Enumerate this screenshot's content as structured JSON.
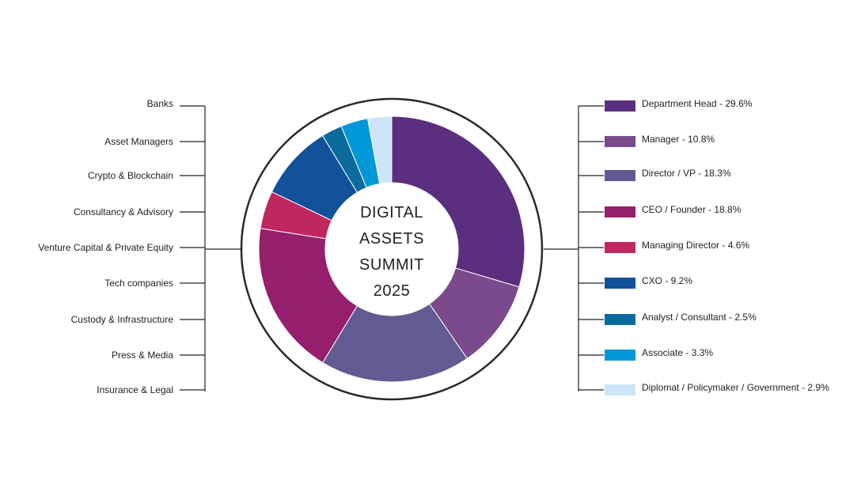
{
  "center": {
    "line1": "DIGITAL",
    "line2": "ASSETS",
    "line3": "SUMMIT",
    "year": "2025",
    "year_color": "#5b2d82"
  },
  "categories": [
    "Banks",
    "Asset Managers",
    "Crypto & Blockchain",
    "Consultancy & Advisory",
    "Venture Capital & Private Equity",
    "Tech companies",
    "Custody & Infrastructure",
    "Press & Media",
    "Insurance & Legal"
  ],
  "chart_data": {
    "type": "pie",
    "donut": true,
    "labels": [
      "Department Head - 29.6%",
      "Manager - 10.8%",
      "Director / VP - 18.3%",
      "CEO / Founder - 18.8%",
      "Managing Director - 4.6%",
      "CXO - 9.2%",
      "Analyst / Consultant - 2.5%",
      "Associate - 3.3%",
      "Diplomat / Policymaker / Government - 2.9%"
    ],
    "values": [
      29.6,
      10.8,
      18.3,
      18.8,
      4.6,
      9.2,
      2.5,
      3.3,
      2.9
    ],
    "colors": [
      "#5b2f7f",
      "#7b4a8c",
      "#625a92",
      "#951f6c",
      "#c0275f",
      "#10519a",
      "#0a6b9c",
      "#0098d8",
      "#cce5f9"
    ],
    "legend_position": "right",
    "start": "top",
    "direction": "clockwise"
  }
}
